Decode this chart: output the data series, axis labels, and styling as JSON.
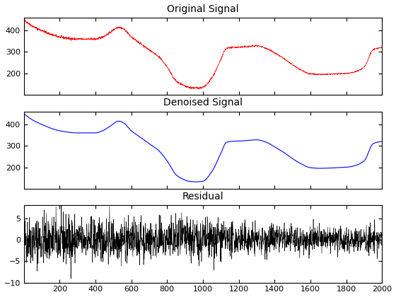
{
  "title1": "Original Signal",
  "title2": "Denoised Signal",
  "title3": "Residual",
  "n_points": 2000,
  "xlim": [
    1,
    2000
  ],
  "xticks": [
    200,
    400,
    600,
    800,
    1000,
    1200,
    1400,
    1600,
    1800,
    2000
  ],
  "ylim1": [
    100,
    460
  ],
  "ylim2": [
    100,
    460
  ],
  "ylim3": [
    -10,
    8
  ],
  "yticks1": [
    200,
    300,
    400
  ],
  "yticks2": [
    200,
    300,
    400
  ],
  "yticks3": [
    -10,
    -5,
    0,
    5
  ],
  "color1": "#ff0000",
  "color2": "#0000ff",
  "color3": "#000000",
  "lw1": 0.5,
  "lw2": 0.8,
  "lw3": 0.4,
  "noise_seed": 42,
  "title_fontsize": 10,
  "bg_color": "#ffffff",
  "figsize": [
    5.6,
    4.2
  ],
  "dpi": 100,
  "control_x": [
    1,
    50,
    100,
    200,
    300,
    400,
    440,
    480,
    530,
    560,
    600,
    650,
    700,
    750,
    800,
    850,
    880,
    920,
    960,
    1000,
    1050,
    1100,
    1130,
    1150,
    1200,
    1250,
    1300,
    1350,
    1400,
    1450,
    1500,
    1550,
    1600,
    1650,
    1700,
    1750,
    1800,
    1850,
    1900,
    1950,
    2000
  ],
  "control_y": [
    450,
    420,
    400,
    370,
    360,
    360,
    370,
    390,
    415,
    405,
    370,
    340,
    310,
    280,
    230,
    165,
    148,
    135,
    132,
    135,
    180,
    265,
    315,
    320,
    322,
    325,
    328,
    318,
    295,
    270,
    240,
    215,
    198,
    195,
    196,
    198,
    200,
    208,
    230,
    310,
    320
  ]
}
